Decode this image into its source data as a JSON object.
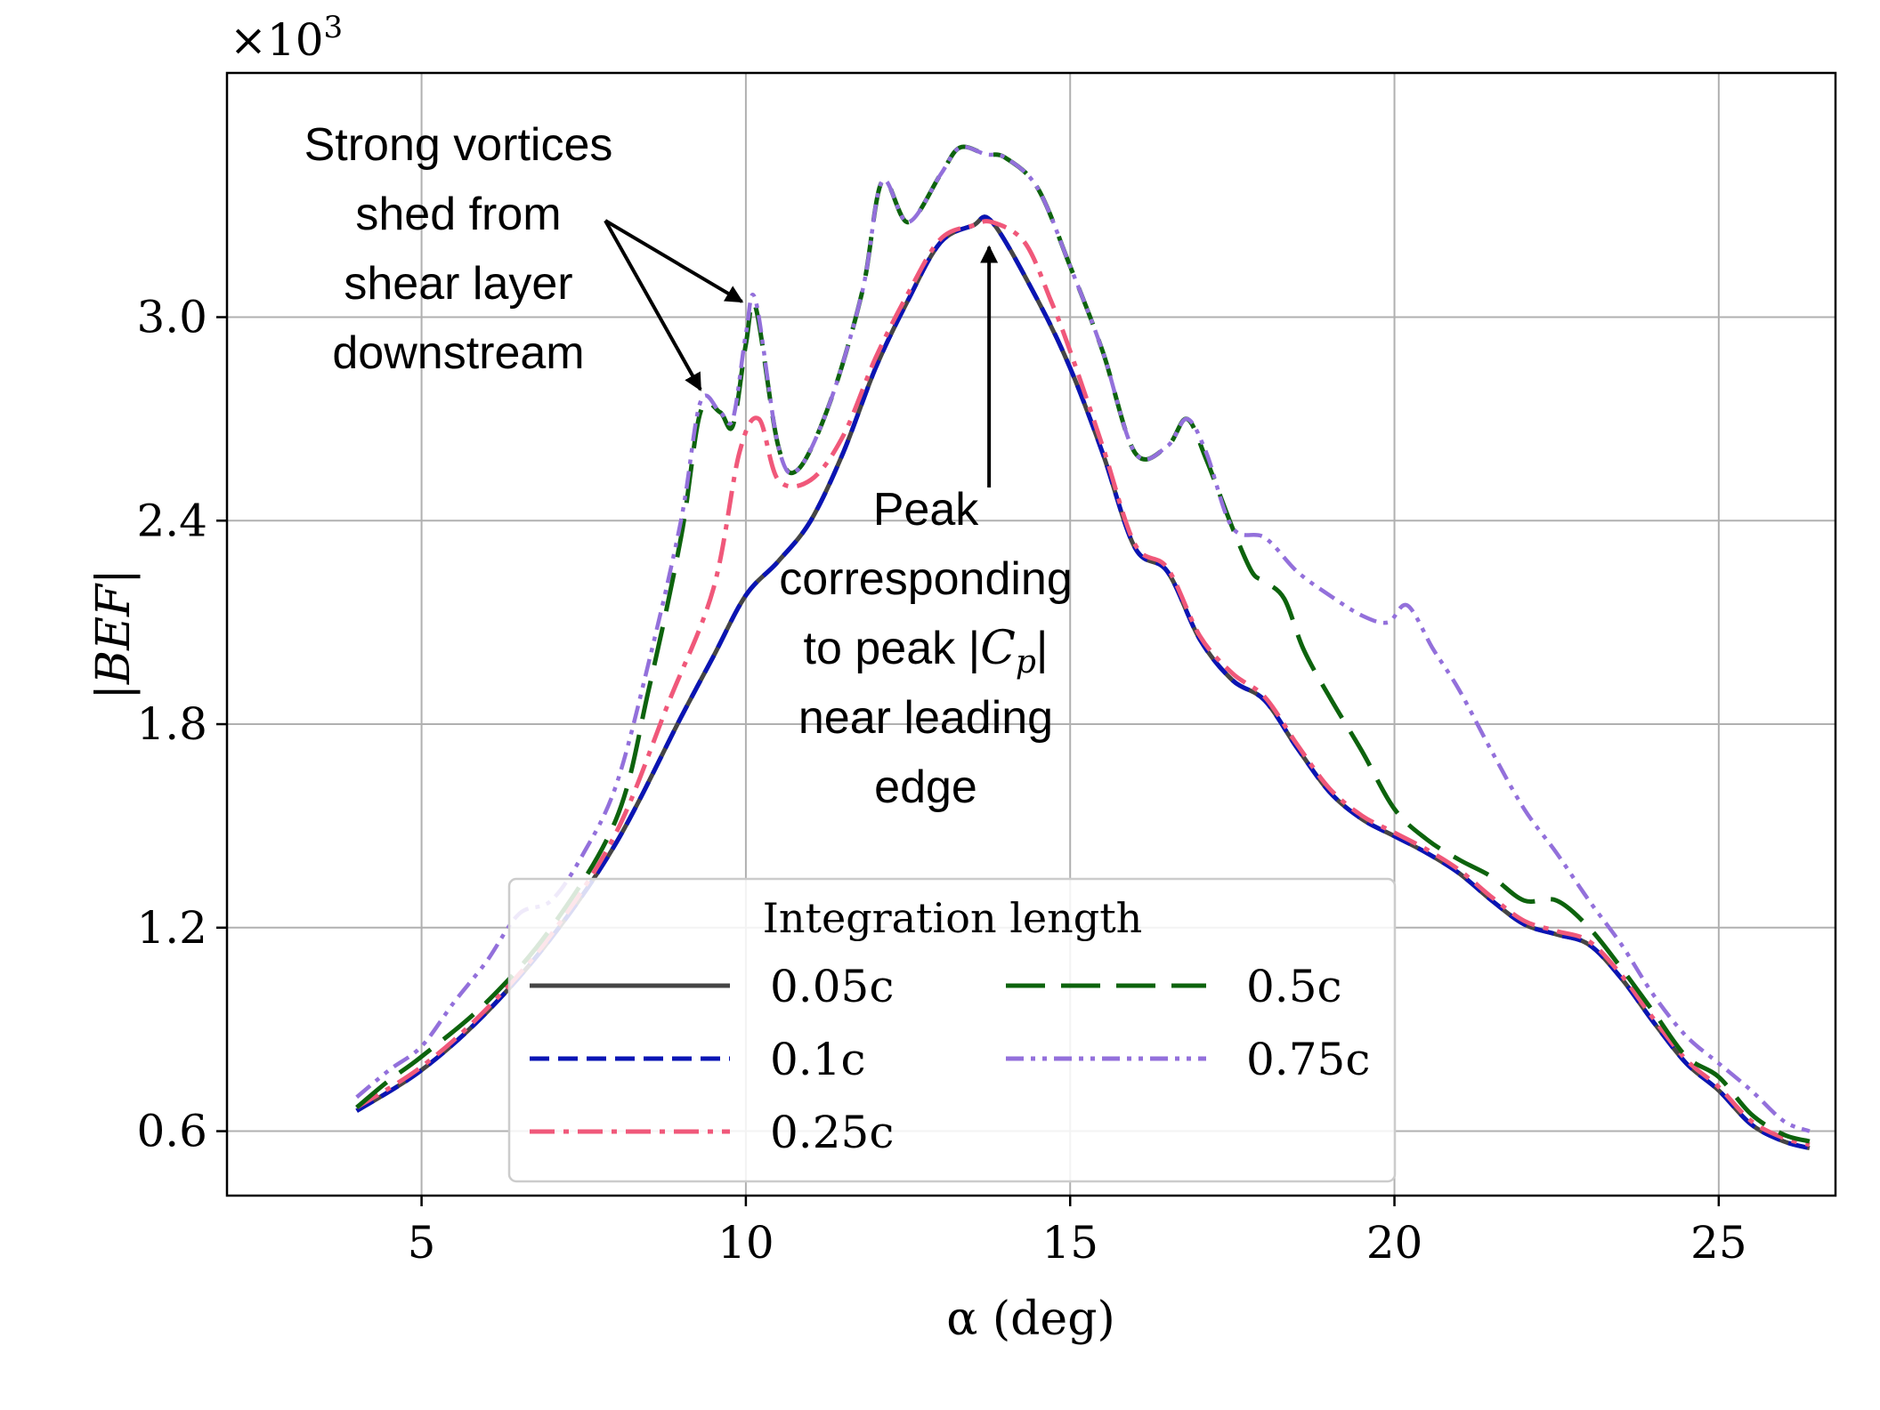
{
  "chart_data": {
    "type": "line",
    "title": "",
    "xlabel": "α (deg)",
    "ylabel": "|BEF|",
    "multiplier": "×10",
    "multiplier_exp": "3",
    "xlim": [
      2.0,
      26.8
    ],
    "ylim": [
      0.41,
      3.72
    ],
    "xticks": [
      5,
      10,
      15,
      20,
      25
    ],
    "xtick_labels": [
      "5",
      "10",
      "15",
      "20",
      "25"
    ],
    "yticks": [
      0.6,
      1.2,
      1.8,
      2.4,
      3.0
    ],
    "ytick_labels": [
      "0.6",
      "1.2",
      "1.8",
      "2.4",
      "3.0"
    ],
    "grid": true,
    "legend": {
      "title": "Integration length",
      "placement": "lower-center",
      "columns": 2
    },
    "series": [
      {
        "name": "0.05c",
        "color": "#454545",
        "style": "solid",
        "x": [
          4.0,
          5.0,
          6.0,
          7.0,
          8.0,
          9.0,
          9.5,
          10.0,
          10.5,
          11.0,
          11.5,
          12.0,
          12.5,
          13.0,
          13.5,
          13.8,
          14.5,
          15.0,
          15.5,
          16.0,
          16.5,
          17.0,
          17.5,
          18.0,
          18.5,
          19.0,
          19.5,
          20.0,
          20.5,
          21.0,
          21.5,
          22.0,
          22.5,
          23.0,
          23.5,
          24.0,
          24.5,
          25.0,
          25.5,
          26.0,
          26.4
        ],
        "y": [
          0.66,
          0.78,
          0.95,
          1.17,
          1.45,
          1.82,
          2.0,
          2.18,
          2.28,
          2.4,
          2.6,
          2.85,
          3.05,
          3.22,
          3.27,
          3.28,
          3.05,
          2.85,
          2.6,
          2.32,
          2.25,
          2.05,
          1.93,
          1.87,
          1.73,
          1.6,
          1.52,
          1.47,
          1.42,
          1.36,
          1.28,
          1.21,
          1.18,
          1.15,
          1.05,
          0.92,
          0.8,
          0.72,
          0.62,
          0.57,
          0.55
        ]
      },
      {
        "name": "0.1c",
        "color": "#0a14b4",
        "style": "dashed",
        "x": [
          4.0,
          5.0,
          6.0,
          7.0,
          8.0,
          9.0,
          9.5,
          10.0,
          10.5,
          11.0,
          11.5,
          12.0,
          12.5,
          13.0,
          13.5,
          13.8,
          14.5,
          15.0,
          15.5,
          16.0,
          16.5,
          17.0,
          17.5,
          18.0,
          18.5,
          19.0,
          19.5,
          20.0,
          20.5,
          21.0,
          21.5,
          22.0,
          22.5,
          23.0,
          23.5,
          24.0,
          24.5,
          25.0,
          25.5,
          26.0,
          26.4
        ],
        "y": [
          0.66,
          0.78,
          0.95,
          1.17,
          1.45,
          1.82,
          2.0,
          2.18,
          2.28,
          2.4,
          2.6,
          2.85,
          3.05,
          3.22,
          3.27,
          3.28,
          3.05,
          2.85,
          2.6,
          2.32,
          2.25,
          2.05,
          1.93,
          1.87,
          1.73,
          1.6,
          1.52,
          1.47,
          1.42,
          1.36,
          1.28,
          1.21,
          1.18,
          1.15,
          1.05,
          0.92,
          0.8,
          0.72,
          0.62,
          0.57,
          0.55
        ]
      },
      {
        "name": "0.25c",
        "color": "#f0587a",
        "style": "dashdot",
        "x": [
          4.0,
          5.0,
          6.0,
          7.0,
          8.0,
          8.8,
          9.5,
          9.9,
          10.2,
          10.5,
          11.0,
          11.5,
          12.0,
          12.5,
          13.0,
          13.5,
          13.8,
          14.3,
          14.7,
          15.0,
          15.5,
          16.0,
          16.5,
          17.0,
          17.5,
          18.0,
          18.5,
          19.0,
          19.5,
          20.0,
          20.5,
          21.0,
          21.5,
          22.0,
          22.5,
          23.0,
          23.5,
          24.0,
          24.5,
          25.0,
          25.5,
          26.0,
          26.4
        ],
        "y": [
          0.67,
          0.79,
          0.96,
          1.18,
          1.48,
          1.86,
          2.2,
          2.6,
          2.7,
          2.52,
          2.52,
          2.65,
          2.88,
          3.07,
          3.23,
          3.27,
          3.28,
          3.22,
          3.05,
          2.9,
          2.62,
          2.33,
          2.26,
          2.06,
          1.95,
          1.88,
          1.74,
          1.61,
          1.53,
          1.48,
          1.43,
          1.37,
          1.29,
          1.22,
          1.19,
          1.16,
          1.06,
          0.93,
          0.81,
          0.73,
          0.63,
          0.58,
          0.56
        ]
      },
      {
        "name": "0.5c",
        "color": "#0d630d",
        "style": "longdash",
        "x": [
          4.0,
          4.5,
          5.0,
          6.0,
          7.0,
          8.0,
          8.5,
          9.0,
          9.3,
          9.6,
          9.8,
          10.0,
          10.15,
          10.5,
          10.8,
          11.3,
          11.8,
          12.1,
          12.5,
          13.0,
          13.3,
          13.7,
          14.0,
          14.5,
          15.0,
          15.5,
          16.0,
          16.5,
          16.8,
          17.1,
          17.5,
          17.8,
          18.0,
          18.3,
          18.6,
          19.0,
          19.5,
          20.0,
          20.5,
          21.0,
          21.5,
          22.0,
          22.5,
          23.0,
          23.5,
          24.0,
          24.5,
          25.0,
          25.5,
          26.0,
          26.4
        ],
        "y": [
          0.67,
          0.75,
          0.82,
          0.98,
          1.2,
          1.52,
          1.9,
          2.35,
          2.72,
          2.72,
          2.68,
          2.92,
          3.03,
          2.62,
          2.55,
          2.75,
          3.08,
          3.4,
          3.28,
          3.42,
          3.5,
          3.48,
          3.47,
          3.38,
          3.15,
          2.9,
          2.6,
          2.62,
          2.7,
          2.58,
          2.38,
          2.25,
          2.22,
          2.17,
          2.02,
          1.88,
          1.72,
          1.55,
          1.46,
          1.4,
          1.35,
          1.28,
          1.28,
          1.2,
          1.08,
          0.95,
          0.82,
          0.76,
          0.65,
          0.59,
          0.57
        ]
      },
      {
        "name": "0.75c",
        "color": "#9370db",
        "style": "dashdotdot",
        "x": [
          4.0,
          4.5,
          5.0,
          5.5,
          6.0,
          6.5,
          7.0,
          7.5,
          8.0,
          8.5,
          9.0,
          9.3,
          9.6,
          9.8,
          10.0,
          10.15,
          10.5,
          10.8,
          11.3,
          11.8,
          12.1,
          12.5,
          13.0,
          13.3,
          13.7,
          14.0,
          14.5,
          15.0,
          15.5,
          16.0,
          16.5,
          16.8,
          17.1,
          17.5,
          18.0,
          18.5,
          19.0,
          19.5,
          19.9,
          20.2,
          20.6,
          21.0,
          21.5,
          22.0,
          22.5,
          23.0,
          23.5,
          24.0,
          24.5,
          25.0,
          25.5,
          26.0,
          26.4
        ],
        "y": [
          0.7,
          0.78,
          0.85,
          0.98,
          1.1,
          1.24,
          1.28,
          1.42,
          1.62,
          1.98,
          2.4,
          2.75,
          2.72,
          2.7,
          2.95,
          3.05,
          2.62,
          2.55,
          2.75,
          3.08,
          3.4,
          3.28,
          3.42,
          3.5,
          3.48,
          3.47,
          3.38,
          3.15,
          2.9,
          2.6,
          2.62,
          2.7,
          2.6,
          2.38,
          2.35,
          2.25,
          2.18,
          2.12,
          2.1,
          2.15,
          2.02,
          1.9,
          1.72,
          1.55,
          1.42,
          1.28,
          1.15,
          1.0,
          0.88,
          0.8,
          0.72,
          0.63,
          0.6
        ]
      }
    ],
    "annotations": [
      {
        "id": "vortices",
        "lines": [
          "Strong vortices",
          "shed from",
          "shear layer",
          "downstream"
        ],
        "arrow_targets": [
          [
            9.3,
            2.76
          ],
          [
            10.05,
            3.03
          ]
        ]
      },
      {
        "id": "peak",
        "lines_before": [
          "Peak",
          "corresponding"
        ],
        "cp_prefix": "to peak |",
        "cp_symbol": "C",
        "cp_subscript": "p",
        "cp_suffix": "|",
        "lines_after": [
          "near leading",
          "edge"
        ],
        "arrow_target": [
          13.75,
          3.27
        ]
      }
    ]
  }
}
